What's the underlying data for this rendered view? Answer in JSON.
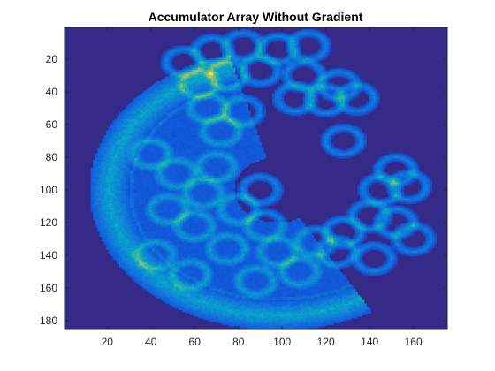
{
  "chart_data": {
    "type": "heatmap",
    "title": "Accumulator Array Without Gradient",
    "xlabel": "",
    "ylabel": "",
    "xlim": [
      0.5,
      175.5
    ],
    "ylim": [
      185.5,
      0.5
    ],
    "y_reversed": true,
    "x_ticks": [
      20,
      40,
      60,
      80,
      100,
      120,
      140,
      160
    ],
    "y_ticks": [
      20,
      40,
      60,
      80,
      100,
      120,
      140,
      160,
      180
    ],
    "colormap": "parula",
    "grid": false,
    "annular_rings": [
      {
        "cx": 55,
        "cy": 22,
        "r": 8
      },
      {
        "cx": 68,
        "cy": 15,
        "r": 8
      },
      {
        "cx": 82,
        "cy": 12,
        "r": 8
      },
      {
        "cx": 98,
        "cy": 14,
        "r": 8
      },
      {
        "cx": 112,
        "cy": 12,
        "r": 8
      },
      {
        "cx": 90,
        "cy": 27,
        "r": 8
      },
      {
        "cx": 75,
        "cy": 30,
        "r": 8
      },
      {
        "cx": 62,
        "cy": 35,
        "r": 8
      },
      {
        "cx": 110,
        "cy": 30,
        "r": 8
      },
      {
        "cx": 106,
        "cy": 44,
        "r": 8
      },
      {
        "cx": 120,
        "cy": 45,
        "r": 8
      },
      {
        "cx": 134,
        "cy": 44,
        "r": 8
      },
      {
        "cx": 126,
        "cy": 36,
        "r": 8
      },
      {
        "cx": 66,
        "cy": 50,
        "r": 8
      },
      {
        "cx": 82,
        "cy": 52,
        "r": 8
      },
      {
        "cx": 72,
        "cy": 64,
        "r": 8
      },
      {
        "cx": 128,
        "cy": 70,
        "r": 8
      },
      {
        "cx": 152,
        "cy": 88,
        "r": 8
      },
      {
        "cx": 145,
        "cy": 100,
        "r": 8
      },
      {
        "cx": 158,
        "cy": 98,
        "r": 8
      },
      {
        "cx": 140,
        "cy": 116,
        "r": 8
      },
      {
        "cx": 152,
        "cy": 120,
        "r": 8
      },
      {
        "cx": 160,
        "cy": 130,
        "r": 8
      },
      {
        "cx": 128,
        "cy": 126,
        "r": 8
      },
      {
        "cx": 115,
        "cy": 132,
        "r": 8
      },
      {
        "cx": 98,
        "cy": 138,
        "r": 8
      },
      {
        "cx": 125,
        "cy": 138,
        "r": 8
      },
      {
        "cx": 108,
        "cy": 150,
        "r": 8
      },
      {
        "cx": 142,
        "cy": 142,
        "r": 8
      },
      {
        "cx": 52,
        "cy": 90,
        "r": 8
      },
      {
        "cx": 64,
        "cy": 102,
        "r": 8
      },
      {
        "cx": 48,
        "cy": 112,
        "r": 8
      },
      {
        "cx": 80,
        "cy": 112,
        "r": 8
      },
      {
        "cx": 92,
        "cy": 122,
        "r": 8
      },
      {
        "cx": 60,
        "cy": 122,
        "r": 8
      },
      {
        "cx": 75,
        "cy": 136,
        "r": 8
      },
      {
        "cx": 90,
        "cy": 100,
        "r": 8
      },
      {
        "cx": 70,
        "cy": 86,
        "r": 8
      },
      {
        "cx": 40,
        "cy": 78,
        "r": 8
      },
      {
        "cx": 42,
        "cy": 140,
        "r": 8
      },
      {
        "cx": 58,
        "cy": 152,
        "r": 8
      },
      {
        "cx": 88,
        "cy": 156,
        "r": 8
      }
    ],
    "crescent": {
      "cx": 98,
      "cy": 100,
      "r_outer": 82,
      "r_inner": 72,
      "theta_start_deg": 105,
      "theta_end_deg": 300
    }
  }
}
